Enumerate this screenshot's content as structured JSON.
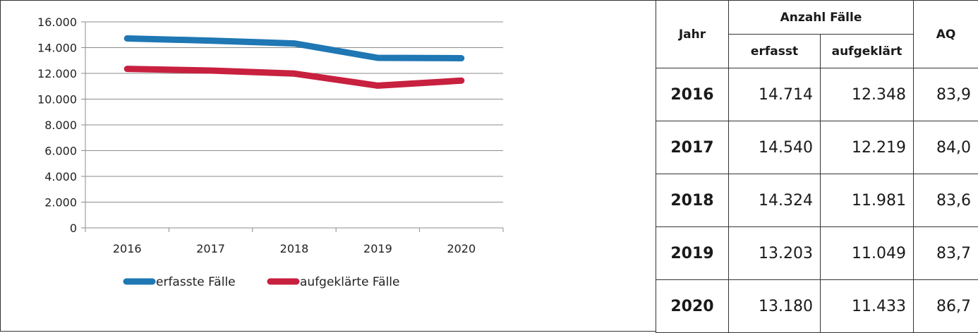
{
  "chart_data": {
    "type": "line",
    "categories": [
      "2016",
      "2017",
      "2018",
      "2019",
      "2020"
    ],
    "yticks": [
      "0",
      "2.000",
      "4.000",
      "6.000",
      "8.000",
      "10.000",
      "12.000",
      "14.000",
      "16.000"
    ],
    "ylim": [
      0,
      16000
    ],
    "grid": true,
    "legend_position": "bottom",
    "series": [
      {
        "name": "erfasste Fälle",
        "color": "#1f77b4",
        "values": [
          14714,
          14540,
          14324,
          13203,
          13180
        ]
      },
      {
        "name": "aufgeklärte Fälle",
        "color": "#c8203f",
        "values": [
          12348,
          12219,
          11981,
          11049,
          11433
        ]
      }
    ]
  },
  "table": {
    "header_jahr": "Jahr",
    "header_anzahl": "Anzahl Fälle",
    "header_aq": "AQ",
    "sub_erfasst": "erfasst",
    "sub_aufgeklaert": "aufgeklärt",
    "rows": [
      {
        "jahr": "2016",
        "erfasst": "14.714",
        "aufgeklaert": "12.348",
        "aq": "83,9"
      },
      {
        "jahr": "2017",
        "erfasst": "14.540",
        "aufgeklaert": "12.219",
        "aq": "84,0"
      },
      {
        "jahr": "2018",
        "erfasst": "14.324",
        "aufgeklaert": "11.981",
        "aq": "83,6"
      },
      {
        "jahr": "2019",
        "erfasst": "13.203",
        "aufgeklaert": "11.049",
        "aq": "83,7"
      },
      {
        "jahr": "2020",
        "erfasst": "13.180",
        "aufgeklaert": "11.433",
        "aq": "86,7"
      }
    ]
  }
}
